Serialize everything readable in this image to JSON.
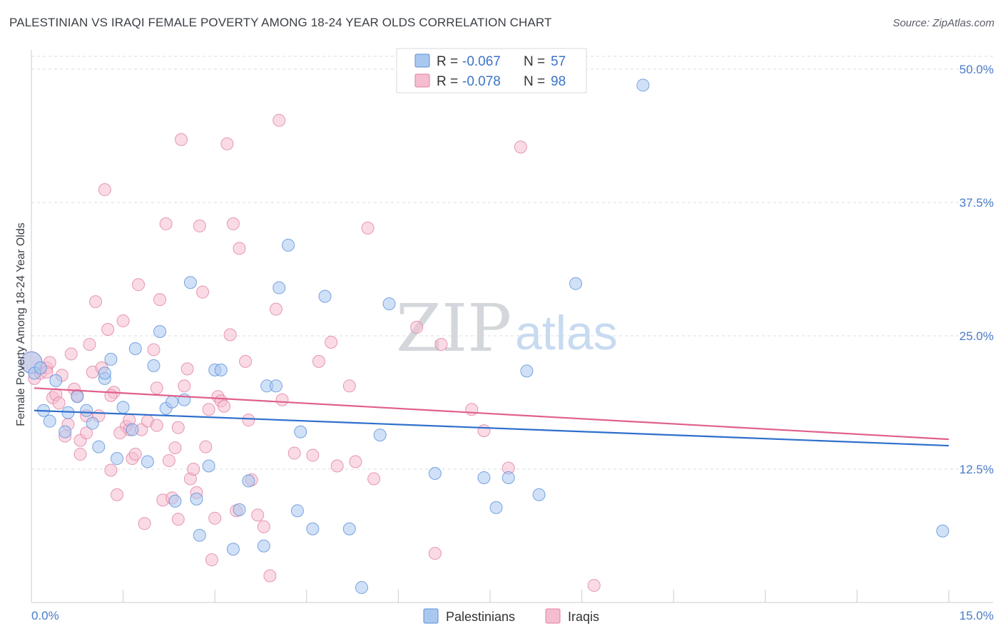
{
  "header": {
    "title": "PALESTINIAN VS IRAQI FEMALE POVERTY AMONG 18-24 YEAR OLDS CORRELATION CHART",
    "source": "Source: ZipAtlas.com"
  },
  "watermark": {
    "zip": "ZIP",
    "atlas": "atlas"
  },
  "legend_box": {
    "rows": [
      {
        "r_label": "R = ",
        "r_value": "-0.067",
        "n_label": "N = ",
        "n_value": "57"
      },
      {
        "r_label": "R = ",
        "r_value": "-0.078",
        "n_label": "N = ",
        "n_value": "98"
      }
    ]
  },
  "colors": {
    "palestinians_fill": "#a9c8f0",
    "palestinians_stroke": "#5b8fd8",
    "palestinians_line": "#2e6fcc",
    "iraqis_fill": "#f6bdd0",
    "iraqis_stroke": "#e07fa3",
    "iraqis_line": "#e0608c",
    "tick_text": "#4a7cc7",
    "grid": "#d9dde3"
  },
  "chart_data": {
    "type": "scatter",
    "title": "PALESTINIAN VS IRAQI FEMALE POVERTY AMONG 18-24 YEAR OLDS CORRELATION CHART",
    "xlabel": "",
    "ylabel": "Female Poverty Among 18-24 Year Olds",
    "xlim": [
      0,
      15
    ],
    "ylim": [
      0,
      52
    ],
    "x_tick_labels": [
      "0.0%",
      "15.0%"
    ],
    "y_ticks": [
      12.5,
      25.0,
      37.5,
      50.0
    ],
    "y_tick_labels": [
      "12.5%",
      "25.0%",
      "37.5%",
      "50.0%"
    ],
    "grid": "horizontal dashed",
    "legend_position": "bottom-center",
    "series": [
      {
        "name": "Palestinians",
        "r": -0.067,
        "n": 57,
        "trend": {
          "x": [
            0,
            15
          ],
          "y": [
            18.0,
            14.7
          ]
        },
        "points": [
          [
            0.0,
            22.5
          ],
          [
            0.05,
            21.5
          ],
          [
            0.15,
            22.0
          ],
          [
            0.2,
            18.0
          ],
          [
            0.3,
            17.0
          ],
          [
            0.55,
            16.0
          ],
          [
            0.6,
            17.8
          ],
          [
            0.75,
            19.3
          ],
          [
            0.9,
            18.0
          ],
          [
            1.0,
            16.8
          ],
          [
            1.1,
            14.6
          ],
          [
            1.2,
            21.0
          ],
          [
            1.3,
            22.8
          ],
          [
            1.4,
            13.5
          ],
          [
            1.5,
            18.3
          ],
          [
            1.7,
            23.8
          ],
          [
            1.65,
            16.2
          ],
          [
            1.9,
            13.2
          ],
          [
            2.0,
            22.2
          ],
          [
            2.1,
            25.4
          ],
          [
            2.2,
            18.2
          ],
          [
            2.3,
            18.8
          ],
          [
            2.35,
            9.5
          ],
          [
            2.5,
            19.0
          ],
          [
            2.6,
            30.0
          ],
          [
            2.7,
            9.7
          ],
          [
            2.75,
            6.3
          ],
          [
            2.9,
            12.8
          ],
          [
            3.0,
            21.8
          ],
          [
            3.1,
            21.8
          ],
          [
            3.3,
            5.0
          ],
          [
            3.4,
            8.7
          ],
          [
            3.55,
            11.4
          ],
          [
            3.8,
            5.3
          ],
          [
            3.85,
            20.3
          ],
          [
            4.0,
            20.3
          ],
          [
            4.05,
            29.5
          ],
          [
            4.2,
            33.5
          ],
          [
            4.35,
            8.6
          ],
          [
            4.4,
            16.0
          ],
          [
            4.6,
            6.9
          ],
          [
            4.8,
            28.7
          ],
          [
            5.2,
            6.9
          ],
          [
            5.4,
            1.4
          ],
          [
            5.7,
            15.7
          ],
          [
            5.85,
            28.0
          ],
          [
            6.6,
            12.1
          ],
          [
            7.4,
            11.7
          ],
          [
            7.6,
            8.9
          ],
          [
            7.8,
            11.7
          ],
          [
            8.1,
            21.7
          ],
          [
            8.3,
            10.1
          ],
          [
            8.9,
            29.9
          ],
          [
            10.0,
            48.5
          ],
          [
            14.9,
            6.7
          ],
          [
            1.2,
            21.5
          ],
          [
            0.4,
            20.8
          ]
        ]
      },
      {
        "name": "Iraqis",
        "r": -0.078,
        "n": 98,
        "trend": {
          "x": [
            0,
            15
          ],
          "y": [
            20.1,
            15.3
          ]
        },
        "points": [
          [
            0.0,
            22.5
          ],
          [
            0.05,
            21.0
          ],
          [
            0.15,
            21.5
          ],
          [
            0.25,
            22.0
          ],
          [
            0.3,
            22.5
          ],
          [
            0.35,
            19.2
          ],
          [
            0.4,
            19.5
          ],
          [
            0.45,
            18.7
          ],
          [
            0.5,
            21.3
          ],
          [
            0.55,
            15.6
          ],
          [
            0.6,
            16.7
          ],
          [
            0.65,
            23.3
          ],
          [
            0.7,
            20.0
          ],
          [
            0.75,
            19.4
          ],
          [
            0.8,
            13.9
          ],
          [
            0.8,
            15.2
          ],
          [
            0.9,
            17.5
          ],
          [
            0.95,
            24.2
          ],
          [
            1.0,
            21.6
          ],
          [
            1.05,
            28.2
          ],
          [
            1.1,
            17.5
          ],
          [
            1.15,
            22.0
          ],
          [
            1.2,
            38.7
          ],
          [
            1.25,
            25.6
          ],
          [
            1.3,
            12.4
          ],
          [
            1.35,
            19.7
          ],
          [
            1.4,
            10.1
          ],
          [
            1.5,
            26.4
          ],
          [
            1.55,
            16.5
          ],
          [
            1.6,
            16.2
          ],
          [
            1.65,
            13.5
          ],
          [
            1.7,
            13.9
          ],
          [
            1.75,
            29.8
          ],
          [
            1.8,
            16.2
          ],
          [
            1.85,
            7.4
          ],
          [
            1.9,
            17.0
          ],
          [
            2.0,
            23.7
          ],
          [
            2.05,
            16.6
          ],
          [
            2.1,
            28.4
          ],
          [
            2.15,
            9.6
          ],
          [
            2.2,
            35.5
          ],
          [
            2.25,
            13.3
          ],
          [
            2.3,
            9.8
          ],
          [
            2.35,
            14.5
          ],
          [
            2.4,
            7.8
          ],
          [
            2.45,
            43.4
          ],
          [
            2.5,
            20.3
          ],
          [
            2.55,
            21.9
          ],
          [
            2.6,
            11.6
          ],
          [
            2.65,
            12.5
          ],
          [
            2.7,
            10.3
          ],
          [
            2.75,
            35.3
          ],
          [
            2.8,
            29.1
          ],
          [
            2.85,
            14.6
          ],
          [
            2.9,
            18.1
          ],
          [
            2.95,
            4.0
          ],
          [
            3.0,
            7.9
          ],
          [
            3.05,
            19.3
          ],
          [
            3.1,
            18.9
          ],
          [
            3.15,
            18.4
          ],
          [
            3.2,
            43.0
          ],
          [
            3.25,
            25.1
          ],
          [
            3.3,
            35.5
          ],
          [
            3.35,
            8.6
          ],
          [
            3.4,
            33.2
          ],
          [
            3.5,
            22.6
          ],
          [
            3.55,
            17.1
          ],
          [
            3.6,
            11.5
          ],
          [
            3.7,
            8.2
          ],
          [
            3.8,
            7.1
          ],
          [
            3.9,
            2.5
          ],
          [
            4.0,
            27.5
          ],
          [
            4.05,
            45.2
          ],
          [
            4.1,
            19.0
          ],
          [
            4.3,
            14.0
          ],
          [
            4.6,
            13.8
          ],
          [
            4.7,
            22.6
          ],
          [
            4.9,
            24.4
          ],
          [
            5.0,
            12.8
          ],
          [
            5.2,
            20.3
          ],
          [
            5.3,
            13.2
          ],
          [
            5.5,
            35.1
          ],
          [
            5.6,
            11.6
          ],
          [
            6.3,
            25.8
          ],
          [
            6.6,
            4.6
          ],
          [
            6.7,
            24.2
          ],
          [
            7.2,
            18.1
          ],
          [
            7.4,
            16.1
          ],
          [
            7.8,
            12.6
          ],
          [
            8.0,
            42.7
          ],
          [
            9.2,
            1.6
          ],
          [
            1.45,
            15.9
          ],
          [
            1.6,
            17.1
          ],
          [
            2.05,
            20.1
          ],
          [
            0.25,
            21.6
          ],
          [
            0.9,
            15.9
          ],
          [
            1.3,
            19.4
          ],
          [
            2.4,
            16.4
          ]
        ]
      }
    ]
  }
}
